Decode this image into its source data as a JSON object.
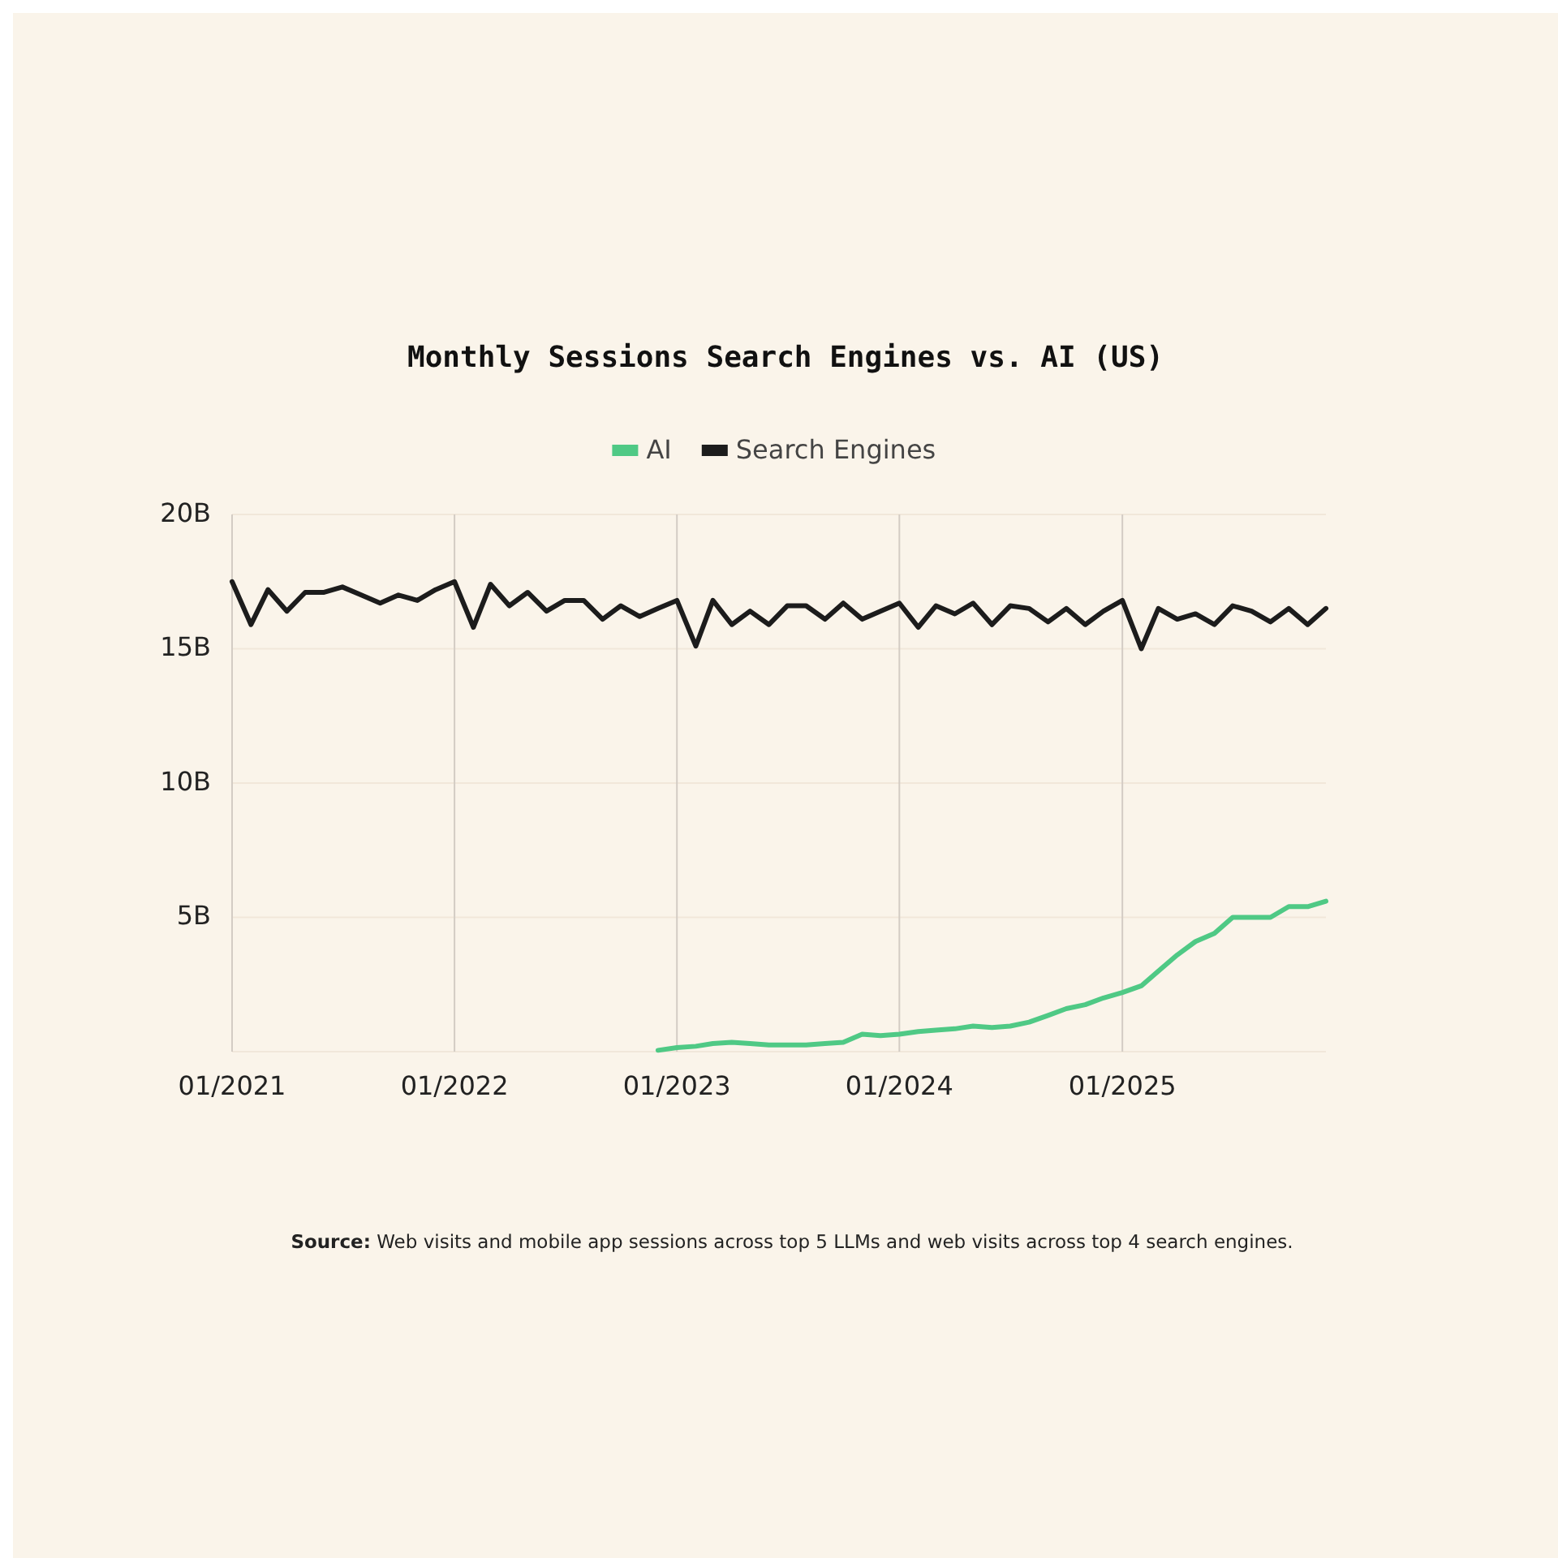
{
  "chart_data": {
    "type": "line",
    "title": "Monthly Sessions Search Engines vs. AI (US)",
    "x": [
      "2021-01",
      "2021-02",
      "2021-03",
      "2021-04",
      "2021-05",
      "2021-06",
      "2021-07",
      "2021-08",
      "2021-09",
      "2021-10",
      "2021-11",
      "2021-12",
      "2022-01",
      "2022-02",
      "2022-03",
      "2022-04",
      "2022-05",
      "2022-06",
      "2022-07",
      "2022-08",
      "2022-09",
      "2022-10",
      "2022-11",
      "2022-12",
      "2023-01",
      "2023-02",
      "2023-03",
      "2023-04",
      "2023-05",
      "2023-06",
      "2023-07",
      "2023-08",
      "2023-09",
      "2023-10",
      "2023-11",
      "2023-12",
      "2024-01",
      "2024-02",
      "2024-03",
      "2024-04",
      "2024-05",
      "2024-06",
      "2024-07",
      "2024-08",
      "2024-09",
      "2024-10",
      "2024-11",
      "2024-12",
      "2025-01",
      "2025-02",
      "2025-03",
      "2025-04",
      "2025-05",
      "2025-06",
      "2025-07",
      "2025-08",
      "2025-09",
      "2025-10",
      "2025-11",
      "2025-12"
    ],
    "series": [
      {
        "name": "AI",
        "color": "#4fc985",
        "values": [
          null,
          null,
          null,
          null,
          null,
          null,
          null,
          null,
          null,
          null,
          null,
          null,
          null,
          null,
          null,
          null,
          null,
          null,
          null,
          null,
          null,
          null,
          null,
          0.05,
          0.15,
          0.2,
          0.3,
          0.35,
          0.3,
          0.25,
          0.25,
          0.25,
          0.3,
          0.35,
          0.65,
          0.6,
          0.65,
          0.75,
          0.8,
          0.85,
          0.95,
          0.9,
          0.95,
          1.1,
          1.35,
          1.6,
          1.75,
          2.0,
          2.2,
          2.45,
          3.0,
          3.6,
          4.1,
          4.4,
          5.0,
          5.0,
          5.0,
          5.4,
          5.4,
          5.6
        ]
      },
      {
        "name": "Search Engines",
        "color": "#1c1c1c",
        "values": [
          17.5,
          15.9,
          17.2,
          16.4,
          17.1,
          17.1,
          17.3,
          17.0,
          16.7,
          17.0,
          16.8,
          17.2,
          17.5,
          15.8,
          17.4,
          16.6,
          17.1,
          16.4,
          16.8,
          16.8,
          16.1,
          16.6,
          16.2,
          16.5,
          16.8,
          15.1,
          16.8,
          15.9,
          16.4,
          15.9,
          16.6,
          16.6,
          16.1,
          16.7,
          16.1,
          16.4,
          16.7,
          15.8,
          16.6,
          16.3,
          16.7,
          15.9,
          16.6,
          16.5,
          16.0,
          16.5,
          15.9,
          16.4,
          16.8,
          15.0,
          16.5,
          16.1,
          16.3,
          15.9,
          16.6,
          16.4,
          16.0,
          16.5,
          15.9,
          16.5
        ]
      }
    ],
    "xlim": [
      "2021-01",
      "2025-12"
    ],
    "xticks": [
      {
        "value": "2021-01",
        "label": "01/2021"
      },
      {
        "value": "2022-01",
        "label": "01/2022"
      },
      {
        "value": "2023-01",
        "label": "01/2023"
      },
      {
        "value": "2024-01",
        "label": "01/2024"
      },
      {
        "value": "2025-01",
        "label": "01/2025"
      }
    ],
    "ylim": [
      0,
      20
    ],
    "yticks": [
      {
        "value": 0,
        "label": null
      },
      {
        "value": 5,
        "label": "5B"
      },
      {
        "value": 10,
        "label": "10B"
      },
      {
        "value": 15,
        "label": "15B"
      },
      {
        "value": 20,
        "label": "20B"
      }
    ],
    "grid": true,
    "legend": "top",
    "marker": "none",
    "line_style": "solid",
    "annotations": [
      "Source: Web visits and mobile app sessions across top 5 LLMs and web visits across top 4 search engines."
    ]
  }
}
